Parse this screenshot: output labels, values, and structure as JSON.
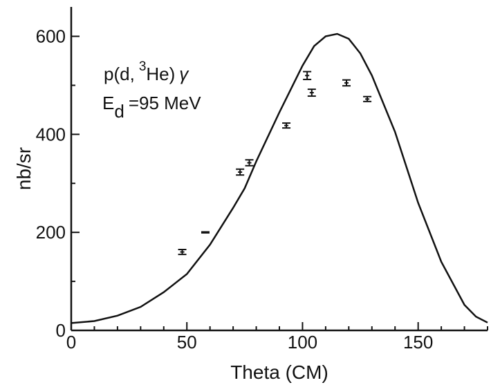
{
  "chart_data": {
    "type": "scatter",
    "title": "",
    "xlabel": "Theta (CM)",
    "ylabel": "nb/sr",
    "xlim": [
      0,
      180
    ],
    "ylim": [
      0,
      660
    ],
    "xticks": [
      0,
      50,
      100,
      150
    ],
    "yticks": [
      0,
      200,
      400,
      600
    ],
    "grid": false,
    "annotation": {
      "reaction": {
        "p1": "p(d,",
        "sup": "3",
        "p2": "He)",
        "gamma": "γ"
      },
      "energy": {
        "e": "E",
        "sub": "d",
        "value": "=95 MeV"
      }
    },
    "series": [
      {
        "kind": "points",
        "points": [
          {
            "x": 48,
            "y": 160,
            "err": 5
          },
          {
            "x": 58,
            "y": 200,
            "err": 1
          },
          {
            "x": 73,
            "y": 323,
            "err": 6
          },
          {
            "x": 77,
            "y": 342,
            "err": 6
          },
          {
            "x": 93,
            "y": 418,
            "err": 5
          },
          {
            "x": 102,
            "y": 520,
            "err": 8
          },
          {
            "x": 104,
            "y": 485,
            "err": 7
          },
          {
            "x": 119,
            "y": 505,
            "err": 6
          },
          {
            "x": 128,
            "y": 472,
            "err": 5
          }
        ]
      },
      {
        "kind": "line",
        "x": [
          0,
          10,
          20,
          30,
          40,
          50,
          60,
          70,
          75,
          80,
          90,
          100,
          105,
          110,
          115,
          120,
          125,
          130,
          140,
          150,
          160,
          170,
          175,
          180
        ],
        "y": [
          15,
          19,
          30,
          48,
          78,
          115,
          175,
          250,
          290,
          345,
          445,
          540,
          580,
          600,
          605,
          595,
          565,
          520,
          405,
          260,
          140,
          52,
          28,
          16
        ]
      }
    ]
  }
}
